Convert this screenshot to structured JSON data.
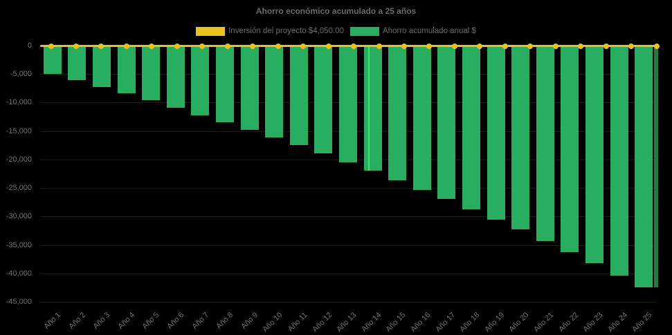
{
  "chart_data": {
    "type": "bar",
    "title": "Ahorro económico acumulado a 25 años",
    "categories": [
      "Año 1",
      "Año 2",
      "Año 3",
      "Año 4",
      "Año 5",
      "Año 6",
      "Año 7",
      "Año 8",
      "Año 9",
      "Año 10",
      "Año 11",
      "Año 12",
      "Año 13",
      "Año 14",
      "Año 15",
      "Año 16",
      "Año 17",
      "Año 18",
      "Año 19",
      "Año 20",
      "Año 21",
      "Año 22",
      "Año 23",
      "Año 24",
      "Año 25"
    ],
    "series": [
      {
        "name": "Inversión del proyecto $4,050.00",
        "type": "line",
        "color": "#E9C31A",
        "marker": "circle",
        "value": 4050
      },
      {
        "name": "Ahorro acumulado anual $",
        "type": "bar",
        "color": "#27AE60",
        "values": [
          -4950,
          -6100,
          -7250,
          -8400,
          -9550,
          -10850,
          -12200,
          -13400,
          -14800,
          -16150,
          -17400,
          -18950,
          -20550,
          -22000,
          -23700,
          -25300,
          -26950,
          -28750,
          -30600,
          -32300,
          -34300,
          -36250,
          -38200,
          -40350,
          -42450
        ]
      }
    ],
    "ylim": [
      -45000,
      0
    ],
    "yticks": [
      0,
      -5000,
      -10000,
      -15000,
      -20000,
      -25000,
      -30000,
      -35000,
      -40000,
      -45000
    ],
    "grid": true,
    "legend_position": "top",
    "x_label_rotation": -45,
    "background": "#000000",
    "highlighted_bar": "Año 14"
  }
}
